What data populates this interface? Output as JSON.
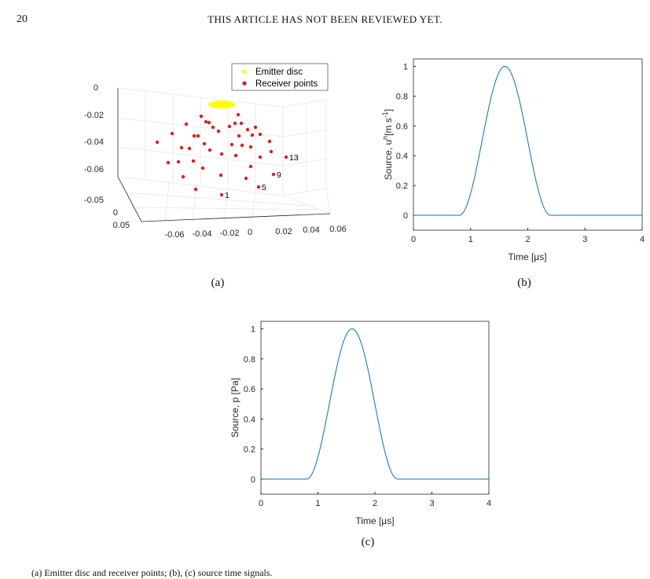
{
  "header": {
    "page_number": "20",
    "running_title": "THIS ARTICLE HAS NOT BEEN REVIEWED YET."
  },
  "figure_a": {
    "label": "(a)",
    "legend": [
      "Emitter disc",
      "Receiver points"
    ],
    "z_ticks": [
      "0",
      "-0.02",
      "-0.04",
      "-0.06"
    ],
    "y_ticks": [
      "-0.05",
      "0",
      "0.05"
    ],
    "x_ticks": [
      "-0.06",
      "-0.04",
      "-0.02",
      "0",
      "0.02",
      "0.04",
      "0.06"
    ],
    "annotations": [
      "13",
      "9",
      "5",
      "1"
    ],
    "colors": {
      "emitter": "#ffff00",
      "receiver": "#e41a1a"
    }
  },
  "figure_b": {
    "label": "(b)",
    "chart_data": {
      "type": "line",
      "xlabel": "Time [µs]",
      "ylabel_main": "Source, u",
      "ylabel_super": "n",
      "ylabel_unit": "[m s",
      "ylabel_unit_super": "-1",
      "ylabel_close": "]",
      "xlim": [
        0,
        4
      ],
      "ylim": [
        -0.1,
        1.05
      ],
      "x_ticks": [
        0,
        1,
        2,
        3,
        4
      ],
      "y_ticks": [
        0,
        0.2,
        0.4,
        0.6,
        0.8,
        1
      ],
      "pulse": {
        "center": 1.6,
        "half_width": 0.8,
        "peak": 1
      },
      "color": "#0072bd"
    }
  },
  "figure_c": {
    "label": "(c)",
    "chart_data": {
      "type": "line",
      "xlabel": "Time [µs]",
      "ylabel": "Source, p [Pa]",
      "xlim": [
        0,
        4
      ],
      "ylim": [
        -0.1,
        1.05
      ],
      "x_ticks": [
        0,
        1,
        2,
        3,
        4
      ],
      "y_ticks": [
        0,
        0.2,
        0.4,
        0.6,
        0.8,
        1
      ],
      "pulse": {
        "center": 1.6,
        "half_width": 0.8,
        "peak": 1
      },
      "color": "#0072bd"
    }
  },
  "caption_fragment": "(a) Emitter disc and receiver points; (b), (c) source time signals."
}
